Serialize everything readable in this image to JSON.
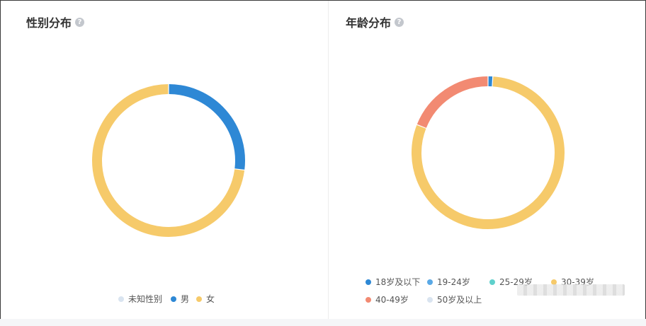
{
  "gender": {
    "title": "性别分布",
    "help": "?",
    "chart_data": {
      "type": "pie",
      "categories": [
        "未知性别",
        "男",
        "女"
      ],
      "values": [
        0.0,
        0.27,
        0.73
      ],
      "colors": [
        "#d9e4f0",
        "#2e88d5",
        "#f6ca6a"
      ],
      "legend": "bottom"
    }
  },
  "age": {
    "title": "年龄分布",
    "help": "?",
    "chart_data": {
      "type": "pie",
      "categories": [
        "18岁及以下",
        "19-24岁",
        "25-29岁",
        "30-39岁",
        "40-49岁",
        "50岁及以上"
      ],
      "values": [
        0.01,
        0.0,
        0.0,
        0.8,
        0.19,
        0.0
      ],
      "colors": [
        "#2e88d5",
        "#5aa9e6",
        "#5fd0cc",
        "#f6ca6a",
        "#f28a72",
        "#d9e4f0"
      ],
      "legend": "bottom"
    }
  }
}
